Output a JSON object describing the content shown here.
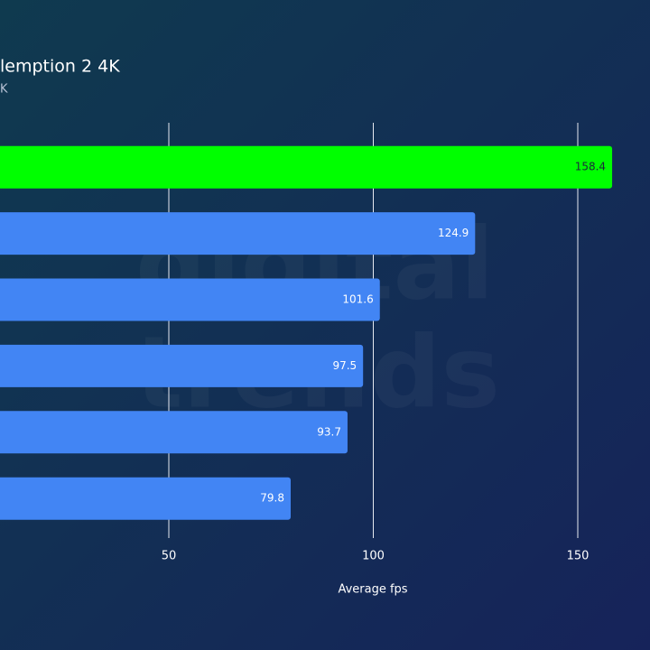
{
  "chart_data": {
    "type": "hbar",
    "title": "lemption 2 4K",
    "subtitle": "K",
    "categories": [
      null,
      null,
      null,
      null,
      null,
      null
    ],
    "values": [
      158.4,
      124.9,
      101.6,
      97.5,
      93.7,
      79.8
    ],
    "colors": [
      "#00ff00",
      "#4285f4",
      "#4285f4",
      "#4285f4",
      "#4285f4",
      "#4285f4"
    ],
    "xlim": [
      0,
      160
    ],
    "xticks": [
      50,
      100,
      150
    ],
    "xlabel": "Average fps",
    "grid": true,
    "watermark": [
      "digital",
      "trends"
    ]
  }
}
